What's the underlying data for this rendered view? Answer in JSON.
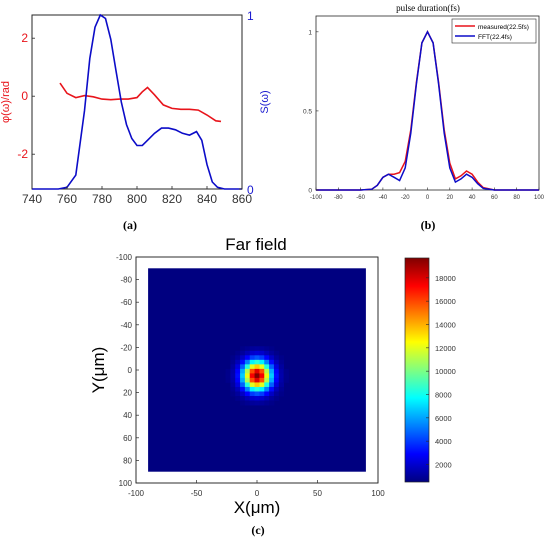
{
  "panels": {
    "a": {
      "caption": "(a)"
    },
    "b": {
      "caption": "(b)"
    },
    "c": {
      "caption": "(c)"
    }
  },
  "colors": {
    "red": "#e8141b",
    "blue": "#0c0cc8",
    "axis": "#262626",
    "phase_axis": "#e8141b",
    "spec_axis": "#1a1ad0"
  },
  "chart_data": [
    {
      "id": "a",
      "type": "line",
      "title": "",
      "xlabel": "",
      "ylabel": "φ(ω)/rad",
      "y2label": "S(ω)",
      "xlim": [
        740,
        860
      ],
      "ylim": [
        -3.2,
        2.8
      ],
      "y2lim": [
        0,
        1
      ],
      "xticks": [
        740,
        760,
        780,
        800,
        820,
        840,
        860
      ],
      "yticks": [
        -2,
        0,
        2
      ],
      "y2ticks": [
        0,
        1
      ],
      "grid": false,
      "series": [
        {
          "axis": "left",
          "color": "#e8141b",
          "x": [
            756,
            760,
            765,
            770,
            775,
            780,
            785,
            790,
            795,
            800,
            803,
            806,
            810,
            815,
            820,
            825,
            830,
            835,
            840,
            845,
            848
          ],
          "values": [
            0.45,
            0.1,
            -0.05,
            0.02,
            -0.02,
            -0.1,
            -0.12,
            -0.1,
            -0.1,
            -0.05,
            0.15,
            0.3,
            0.05,
            -0.3,
            -0.42,
            -0.45,
            -0.45,
            -0.48,
            -0.65,
            -0.85,
            -0.87
          ]
        },
        {
          "axis": "right",
          "color": "#0c0cc8",
          "x": [
            740,
            755,
            760,
            765,
            770,
            773,
            776,
            779,
            782,
            785,
            788,
            791,
            794,
            797,
            800,
            803,
            806,
            810,
            814,
            818,
            822,
            826,
            830,
            834,
            837,
            840,
            843,
            846,
            850,
            860
          ],
          "values": [
            0,
            0,
            0.01,
            0.08,
            0.45,
            0.75,
            0.93,
            1.0,
            0.98,
            0.86,
            0.68,
            0.5,
            0.37,
            0.29,
            0.25,
            0.25,
            0.28,
            0.32,
            0.35,
            0.35,
            0.34,
            0.32,
            0.31,
            0.33,
            0.28,
            0.14,
            0.04,
            0.01,
            0,
            0
          ]
        }
      ]
    },
    {
      "id": "b",
      "type": "line",
      "title": "pulse duration(fs)",
      "xlabel": "",
      "ylabel": "",
      "xlim": [
        -100,
        100
      ],
      "ylim": [
        0,
        1.1
      ],
      "xticks": [
        -100,
        -80,
        -60,
        -40,
        -20,
        0,
        20,
        40,
        60,
        80,
        100
      ],
      "yticks": [
        0,
        0.5,
        1
      ],
      "grid": false,
      "legend": "top-right",
      "series": [
        {
          "name": "measured(22.5fs)",
          "color": "#e8141b",
          "x": [
            -100,
            -60,
            -50,
            -45,
            -40,
            -35,
            -30,
            -25,
            -20,
            -15,
            -10,
            -5,
            0,
            5,
            10,
            15,
            20,
            25,
            30,
            35,
            40,
            45,
            50,
            60,
            100
          ],
          "values": [
            0,
            0,
            0.005,
            0.03,
            0.08,
            0.1,
            0.1,
            0.11,
            0.18,
            0.38,
            0.68,
            0.93,
            1.0,
            0.93,
            0.68,
            0.38,
            0.17,
            0.07,
            0.09,
            0.12,
            0.1,
            0.05,
            0.015,
            0,
            0
          ]
        },
        {
          "name": "FFT(22.4fs)",
          "color": "#0c0cc8",
          "x": [
            -100,
            -60,
            -50,
            -45,
            -40,
            -35,
            -30,
            -25,
            -20,
            -15,
            -10,
            -5,
            0,
            5,
            10,
            15,
            20,
            25,
            30,
            35,
            40,
            45,
            50,
            60,
            100
          ],
          "values": [
            0,
            0,
            0.005,
            0.03,
            0.08,
            0.1,
            0.08,
            0.06,
            0.14,
            0.36,
            0.67,
            0.93,
            1.0,
            0.93,
            0.67,
            0.36,
            0.14,
            0.05,
            0.07,
            0.1,
            0.08,
            0.04,
            0.01,
            0,
            0
          ]
        }
      ]
    },
    {
      "id": "c",
      "type": "heatmap",
      "title": "Far field",
      "xlabel": "X(μm)",
      "ylabel": "Y(μm)",
      "xlim": [
        -100,
        100
      ],
      "ylim": [
        -100,
        100
      ],
      "xticks": [
        -100,
        -50,
        0,
        50,
        100
      ],
      "yticks": [
        -100,
        -80,
        -60,
        -40,
        -20,
        0,
        20,
        40,
        60,
        80,
        100
      ],
      "y_reversed": true,
      "data_extent": [
        -90,
        90
      ],
      "colormap": "jet",
      "clim": [
        500,
        19700
      ],
      "colorbar_ticks": [
        2000,
        4000,
        6000,
        8000,
        10000,
        12000,
        14000,
        16000,
        18000
      ],
      "spot": {
        "center": [
          0,
          5
        ],
        "peak": 19700,
        "sigma_x": 8,
        "sigma_y": 9,
        "background": 500,
        "pixel": 4
      }
    }
  ]
}
